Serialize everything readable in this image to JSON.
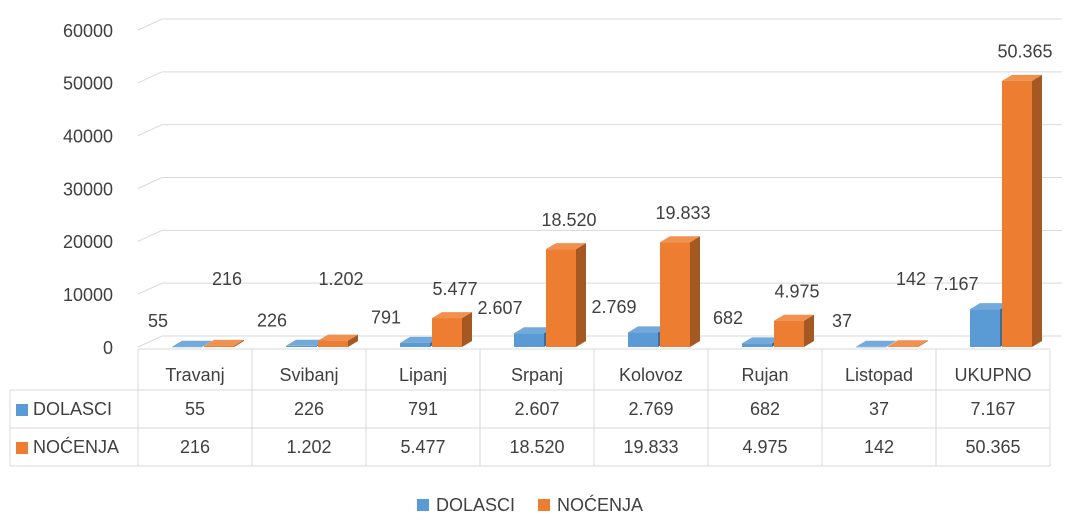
{
  "chart_data": {
    "type": "bar3d",
    "categories": [
      "Travanj",
      "Svibanj",
      "Lipanj",
      "Srpanj",
      "Kolovoz",
      "Rujan",
      "Listopad",
      "UKUPNO"
    ],
    "series": [
      {
        "name": "DOLASCI",
        "color": "#5b9bd5",
        "values": [
          55,
          226,
          791,
          2607,
          2769,
          682,
          37,
          7167
        ],
        "value_labels": [
          "55",
          "226",
          "791",
          "2.607",
          "2.769",
          "682",
          "37",
          "7.167"
        ]
      },
      {
        "name": "NOĆENJA",
        "color": "#ed7d31",
        "values": [
          216,
          1202,
          5477,
          18520,
          19833,
          4975,
          142,
          50365
        ],
        "value_labels": [
          "216",
          "1.202",
          "5.477",
          "18.520",
          "19.833",
          "4.975",
          "142",
          "50.365"
        ]
      }
    ],
    "ylim": [
      0,
      60000
    ],
    "yticks": [
      0,
      10000,
      20000,
      30000,
      40000,
      50000,
      60000
    ],
    "grid": true,
    "legend": "bottom",
    "data_table": true
  }
}
